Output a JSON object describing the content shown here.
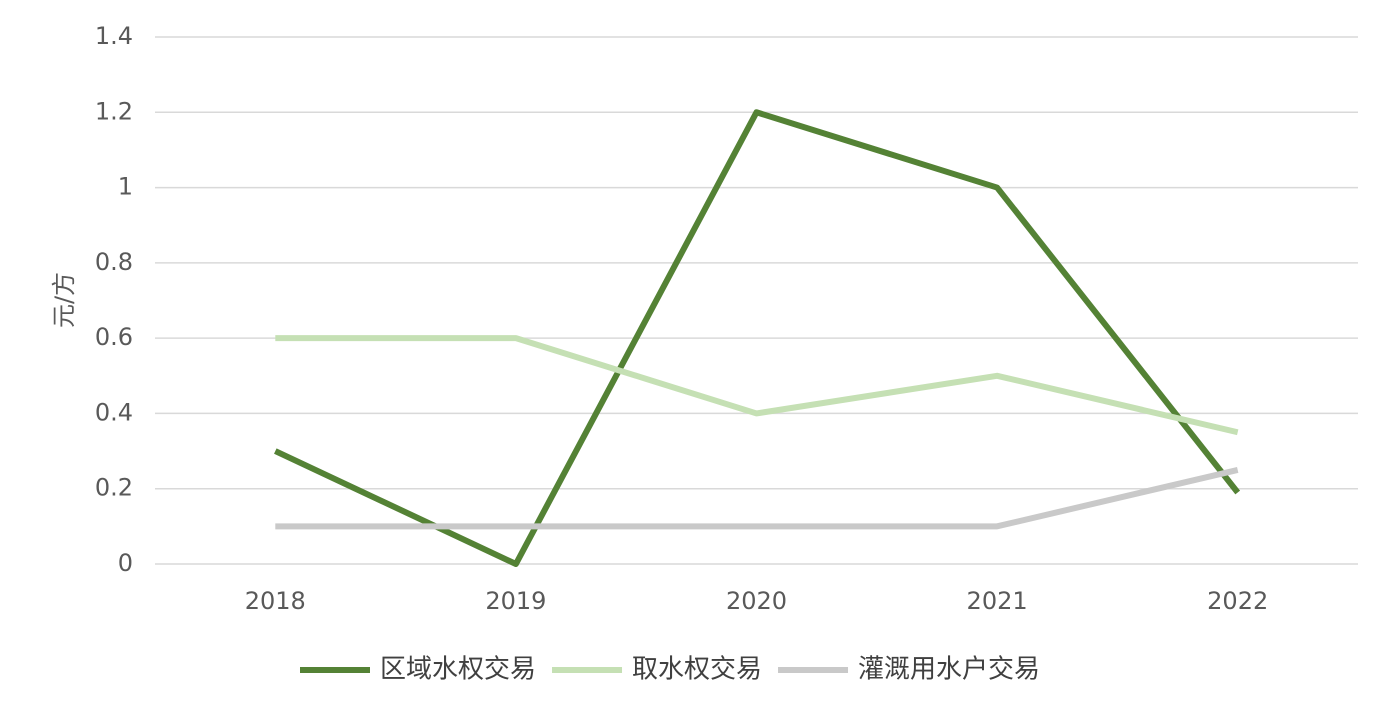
{
  "chart_data": {
    "type": "line",
    "y_label": "元/方",
    "categories": [
      "2018",
      "2019",
      "2020",
      "2021",
      "2022"
    ],
    "series": [
      {
        "name": "区域水权交易",
        "color": "#548235",
        "values": [
          0.3,
          0,
          1.2,
          1.0,
          0.19
        ]
      },
      {
        "name": "取水权交易",
        "color": "#c5e0b4",
        "values": [
          0.6,
          0.6,
          0.4,
          0.5,
          0.35
        ]
      },
      {
        "name": "灌溉用水户交易",
        "color": "#c9c9c9",
        "values": [
          0.1,
          0.1,
          0.1,
          0.1,
          0.25
        ]
      }
    ],
    "ylim": [
      0,
      1.4
    ],
    "yticks": [
      0,
      0.2,
      0.4,
      0.6,
      0.8,
      1,
      1.2,
      1.4
    ],
    "grid": true,
    "legend": "bottom"
  }
}
